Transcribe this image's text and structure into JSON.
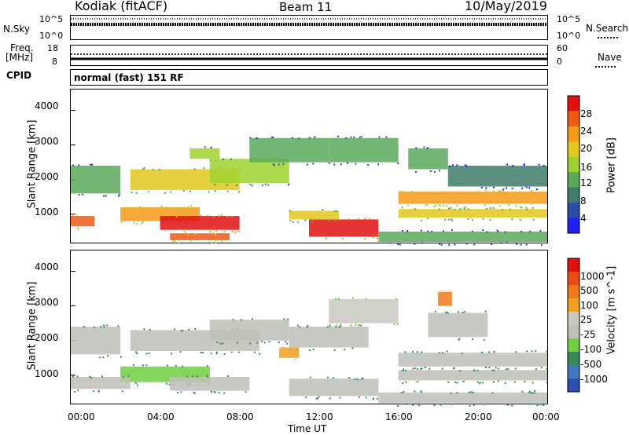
{
  "header": {
    "station": "Kodiak (fitACF)",
    "beam": "Beam 11",
    "date": "10/May/2019"
  },
  "top_panels": {
    "nsky_label": "N.Sky",
    "nsky_ticks": [
      "10^5",
      "10^0"
    ],
    "nsearch_label": "N.Search",
    "nsearch_ticks": [
      "10^5",
      "10^0"
    ],
    "freq_label_line1": "Freq.",
    "freq_label_line2": "[MHz]",
    "freq_ticks": [
      "18",
      "8"
    ],
    "nave_label": "Nave",
    "nave_ticks": [
      "60",
      "0"
    ],
    "cpid_label": "CPID",
    "cpid_value": "normal (fast) 151 RF"
  },
  "colors": {
    "power_scale": [
      "#1f1fff",
      "#2c4aa8",
      "#3e7d6b",
      "#5aa85a",
      "#9fd22f",
      "#e2c81e",
      "#f59a16",
      "#ef5a14",
      "#e01010"
    ],
    "velocity_scale": [
      "#2c4fb0",
      "#3f79bf",
      "#3c8a5b",
      "#6fcf3f",
      "#c0c0b8",
      "#c8c8c0",
      "#f0a020",
      "#f07818",
      "#ea4a14",
      "#e01010"
    ]
  },
  "chart_data": [
    {
      "type": "heatmap",
      "title": "Power [dB]",
      "ylabel": "Slant Range [km]",
      "xlabel": "",
      "yticks": [
        "4000",
        "3000",
        "2000",
        "1000"
      ],
      "ylim": [
        180,
        4600
      ],
      "xlim": [
        0,
        24
      ],
      "colorbar_label": "Power [dB]",
      "colorbar_ticks": [
        "28",
        "24",
        "20",
        "16",
        "12",
        "8",
        "4"
      ],
      "regions": [
        {
          "t0": 0.0,
          "t1": 1.2,
          "r0": 650,
          "r1": 950,
          "level": 7
        },
        {
          "t0": 0.0,
          "t1": 2.5,
          "r0": 1600,
          "r1": 2400,
          "level": 3
        },
        {
          "t0": 2.5,
          "t1": 6.5,
          "r0": 800,
          "r1": 1200,
          "level": 6
        },
        {
          "t0": 4.5,
          "t1": 8.5,
          "r0": 550,
          "r1": 950,
          "level": 8
        },
        {
          "t0": 5.0,
          "t1": 8.0,
          "r0": 250,
          "r1": 450,
          "level": 7
        },
        {
          "t0": 3.0,
          "t1": 8.5,
          "r0": 1700,
          "r1": 2300,
          "level": 5
        },
        {
          "t0": 6.0,
          "t1": 7.5,
          "r0": 2600,
          "r1": 2900,
          "level": 4
        },
        {
          "t0": 7.0,
          "t1": 11.0,
          "r0": 1900,
          "r1": 2600,
          "level": 4
        },
        {
          "t0": 9.0,
          "t1": 13.0,
          "r0": 2500,
          "r1": 3200,
          "level": 3
        },
        {
          "t0": 12.0,
          "t1": 15.5,
          "r0": 350,
          "r1": 850,
          "level": 8
        },
        {
          "t0": 11.0,
          "t1": 13.5,
          "r0": 850,
          "r1": 1100,
          "level": 5
        },
        {
          "t0": 13.0,
          "t1": 16.5,
          "r0": 2500,
          "r1": 3200,
          "level": 3
        },
        {
          "t0": 16.5,
          "t1": 24.0,
          "r0": 1300,
          "r1": 1650,
          "level": 6
        },
        {
          "t0": 16.5,
          "t1": 24.0,
          "r0": 900,
          "r1": 1150,
          "level": 5
        },
        {
          "t0": 17.0,
          "t1": 19.0,
          "r0": 2300,
          "r1": 2900,
          "level": 3
        },
        {
          "t0": 19.0,
          "t1": 24.0,
          "r0": 1800,
          "r1": 2400,
          "level": 2
        },
        {
          "t0": 15.5,
          "t1": 24.0,
          "r0": 200,
          "r1": 500,
          "level": 3
        }
      ]
    },
    {
      "type": "heatmap",
      "title": "Velocity [m s^-1]",
      "ylabel": "Slant Range [km]",
      "xlabel": "Time UT",
      "xticks": [
        "00:00",
        "04:00",
        "08:00",
        "12:00",
        "16:00",
        "20:00",
        "00:00"
      ],
      "yticks": [
        "4000",
        "3000",
        "2000",
        "1000"
      ],
      "ylim": [
        180,
        4600
      ],
      "xlim": [
        0,
        24
      ],
      "colorbar_label": "Velocity [m s^-1]",
      "colorbar_ticks": [
        "1000",
        "500",
        "100",
        "25",
        "-25",
        "-100",
        "-500",
        "-1000"
      ],
      "regions": [
        {
          "t0": 0.0,
          "t1": 2.5,
          "r0": 1600,
          "r1": 2400,
          "level": 4
        },
        {
          "t0": 2.5,
          "t1": 7.0,
          "r0": 800,
          "r1": 1250,
          "level": 3
        },
        {
          "t0": 0.0,
          "t1": 3.0,
          "r0": 600,
          "r1": 950,
          "level": 4
        },
        {
          "t0": 3.0,
          "t1": 9.5,
          "r0": 1700,
          "r1": 2300,
          "level": 4
        },
        {
          "t0": 5.0,
          "t1": 9.0,
          "r0": 550,
          "r1": 950,
          "level": 4
        },
        {
          "t0": 7.0,
          "t1": 11.0,
          "r0": 2000,
          "r1": 2600,
          "level": 4
        },
        {
          "t0": 11.0,
          "t1": 15.5,
          "r0": 400,
          "r1": 900,
          "level": 4
        },
        {
          "t0": 11.0,
          "t1": 15.0,
          "r0": 1800,
          "r1": 2400,
          "level": 4
        },
        {
          "t0": 13.0,
          "t1": 16.5,
          "r0": 2500,
          "r1": 3200,
          "level": 5
        },
        {
          "t0": 16.5,
          "t1": 24.0,
          "r0": 1250,
          "r1": 1650,
          "level": 4
        },
        {
          "t0": 16.5,
          "t1": 24.0,
          "r0": 850,
          "r1": 1150,
          "level": 4
        },
        {
          "t0": 15.5,
          "t1": 24.0,
          "r0": 200,
          "r1": 500,
          "level": 4
        },
        {
          "t0": 18.0,
          "t1": 21.0,
          "r0": 2100,
          "r1": 2800,
          "level": 4
        },
        {
          "t0": 10.5,
          "t1": 11.5,
          "r0": 1500,
          "r1": 1800,
          "level": 6
        },
        {
          "t0": 18.5,
          "t1": 19.2,
          "r0": 3000,
          "r1": 3400,
          "level": 7
        }
      ]
    }
  ]
}
